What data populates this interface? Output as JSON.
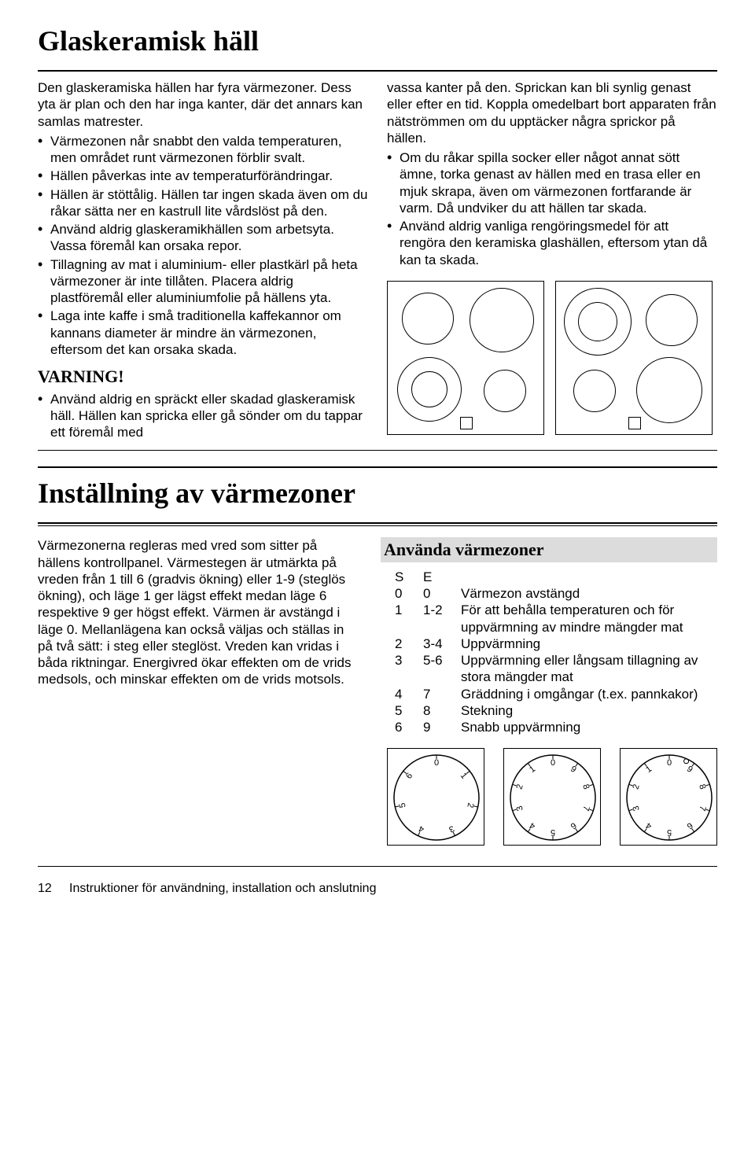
{
  "section1": {
    "title": "Glaskeramisk häll",
    "intro": "Den glaskeramiska hällen har fyra värmezoner. Dess yta är plan och den har inga kanter, där det annars kan samlas matrester.",
    "left_bullets": [
      "Värmezonen når snabbt den valda temperaturen, men området runt värmezonen förblir svalt.",
      "Hällen påverkas inte av temperaturförändringar.",
      "Hällen är stöttålig. Hällen tar ingen skada även om du råkar sätta ner en kastrull lite vårdslöst på den.",
      "Använd aldrig glaskeramikhällen som arbetsyta. Vassa föremål kan orsaka repor.",
      "Tillagning av mat i aluminium- eller plastkärl på heta värmezoner är inte tillåten. Placera aldrig plastföremål eller aluminiumfolie på hällens yta.",
      "Laga inte kaffe i små traditionella kaffekannor om kannans diameter är mindre än värmezonen, eftersom det kan orsaka skada."
    ],
    "warning_title": "VARNING!",
    "warning_bullets": [
      "Använd aldrig en spräckt eller skadad glaskeramisk häll. Hällen kan spricka eller gå sönder om du tappar ett föremål med"
    ],
    "right_lead": "vassa kanter på den. Sprickan kan bli synlig genast eller efter en tid. Koppla omedelbart bort apparaten från nätströmmen om du upptäcker några sprickor på hällen.",
    "right_bullets": [
      "Om du råkar spilla socker eller något annat sött ämne, torka genast av hällen med en trasa eller en mjuk skrapa, även om värmezonen fortfarande är varm. Då undviker du att hällen tar skada.",
      "Använd aldrig vanliga rengöringsmedel för att rengöra den keramiska glashällen, eftersom ytan då kan ta skada."
    ]
  },
  "section2": {
    "title": "Inställning av värmezoner",
    "left_para": "Värmezonerna regleras med vred som sitter på hällens kontrollpanel. Värmestegen är utmärkta på vreden från 1 till 6 (gradvis ökning) eller 1-9 (steglös ökning), och läge 1 ger lägst effekt medan läge 6 respektive 9 ger högst effekt. Värmen är avstängd i läge 0. Mellanlägena kan också väljas och ställas in på två sätt: i steg eller steglöst. Vreden kan vridas i båda riktningar. Energivred ökar effekten om de vrids medsols, och minskar effekten om de vrids motsols.",
    "use_heading": "Använda värmezoner",
    "table_header": {
      "c1": "S",
      "c2": "E",
      "c3": ""
    },
    "rows": [
      {
        "c1": "0",
        "c2": "0",
        "c3": "Värmezon avstängd"
      },
      {
        "c1": "1",
        "c2": "1-2",
        "c3": "För att behålla temperaturen och för uppvärmning av mindre mängder mat"
      },
      {
        "c1": "2",
        "c2": "3-4",
        "c3": "Uppvärmning"
      },
      {
        "c1": "3",
        "c2": "5-6",
        "c3": "Uppvärmning eller långsam tillagning av stora mängder mat"
      },
      {
        "c1": "4",
        "c2": "7",
        "c3": "Gräddning i omgångar (t.ex. pannkakor)"
      },
      {
        "c1": "5",
        "c2": "8",
        "c3": "Stekning"
      },
      {
        "c1": "6",
        "c2": "9",
        "c3": "Snabb uppvärmning"
      }
    ]
  },
  "dials": {
    "dial1_labels": [
      "0",
      "1",
      "2",
      "3",
      "4",
      "5",
      "6"
    ],
    "dial2_labels": [
      "0",
      "9",
      "8",
      "7",
      "6",
      "5",
      "4",
      "3",
      "2",
      "1"
    ],
    "dial3_labels": [
      "0",
      "9",
      "8",
      "7",
      "6",
      "5",
      "4",
      "3",
      "2",
      "1"
    ]
  },
  "footer": {
    "page": "12",
    "text": "Instruktioner för användning, installation och anslutning"
  },
  "colors": {
    "text": "#000000",
    "bg": "#ffffff",
    "shade": "#dcdcdc"
  }
}
